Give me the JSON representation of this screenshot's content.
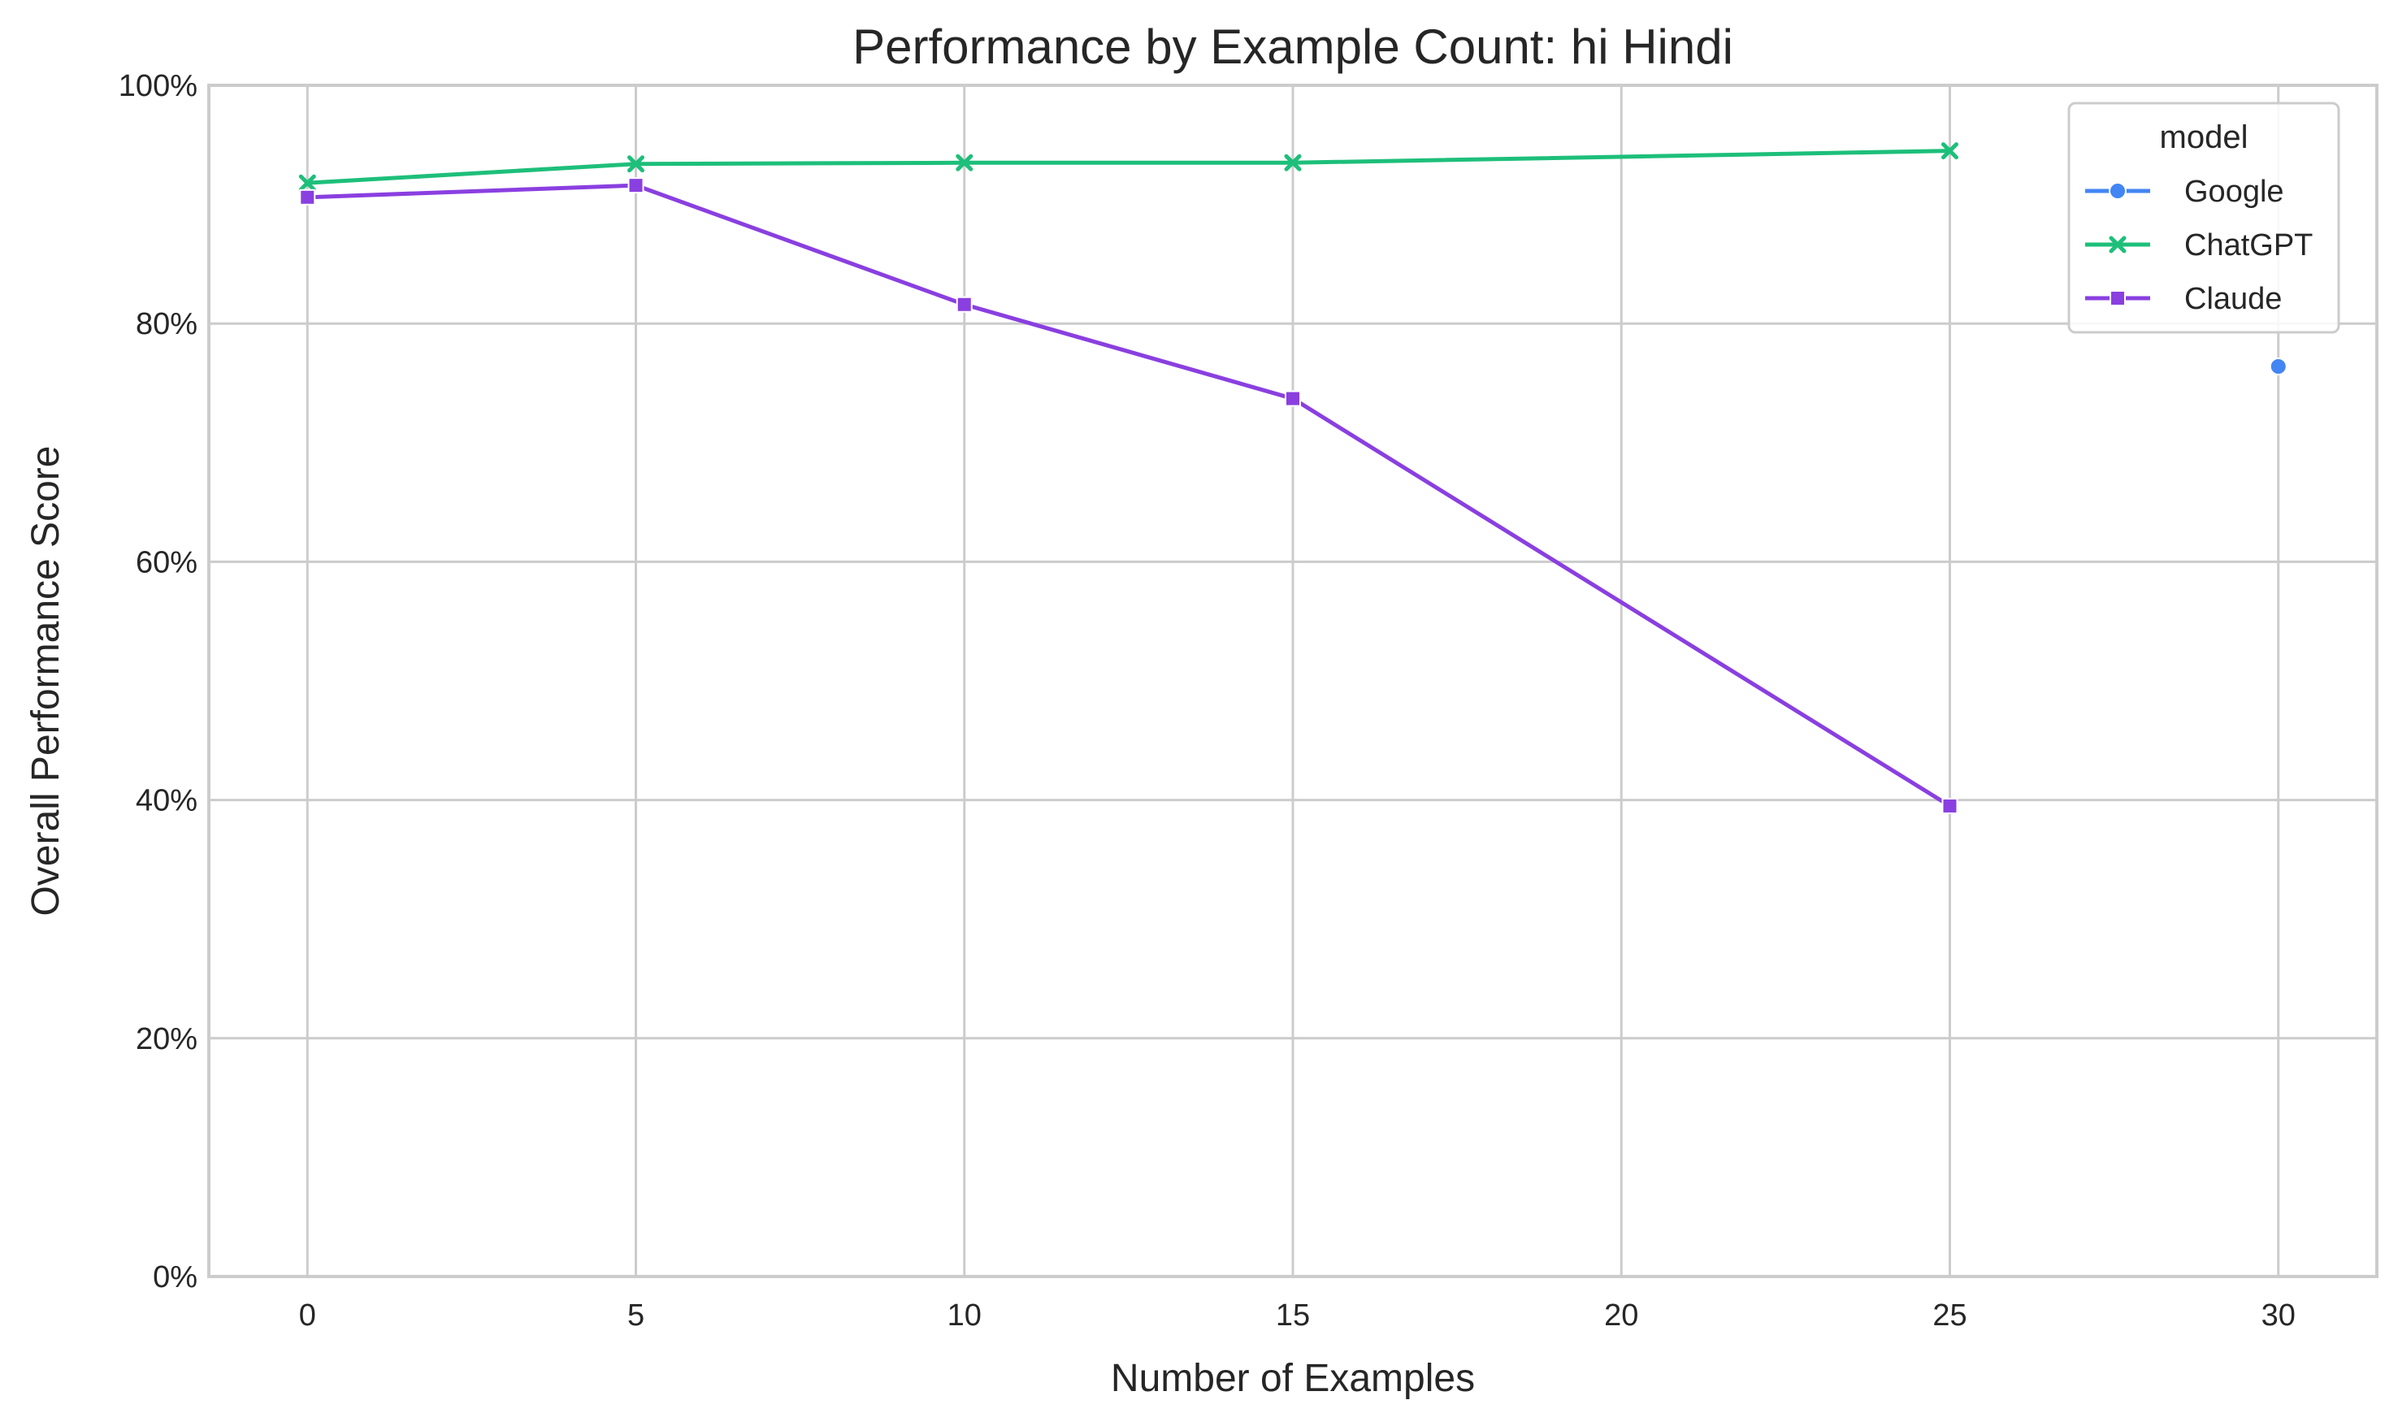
{
  "chart_data": {
    "type": "line",
    "title": "Performance by Example Count: hi Hindi",
    "xlabel": "Number of Examples",
    "ylabel": "Overall Performance Score",
    "xlim": [
      -1.5,
      31.5
    ],
    "ylim": [
      0,
      100
    ],
    "x_ticks": [
      0,
      5,
      10,
      15,
      20,
      25,
      30
    ],
    "x_tick_labels": [
      "0",
      "5",
      "10",
      "15",
      "20",
      "25",
      "30"
    ],
    "y_ticks": [
      0,
      20,
      40,
      60,
      80,
      100
    ],
    "y_tick_labels": [
      "0%",
      "20%",
      "40%",
      "60%",
      "80%",
      "100%"
    ],
    "grid": true,
    "legend": {
      "title": "model",
      "placement": "top-right"
    },
    "series": [
      {
        "name": "Google",
        "color": "#4285f4",
        "marker": "circle",
        "x": [
          30
        ],
        "y": [
          76.4
        ]
      },
      {
        "name": "ChatGPT",
        "color": "#1dbf7a",
        "marker": "x",
        "x": [
          0,
          5,
          10,
          15,
          25
        ],
        "y": [
          91.8,
          93.4,
          93.5,
          93.5,
          94.5
        ]
      },
      {
        "name": "Claude",
        "color": "#8a3fe0",
        "marker": "square",
        "x": [
          0,
          5,
          10,
          15,
          25
        ],
        "y": [
          90.6,
          91.6,
          81.6,
          73.7,
          39.5
        ]
      }
    ]
  }
}
